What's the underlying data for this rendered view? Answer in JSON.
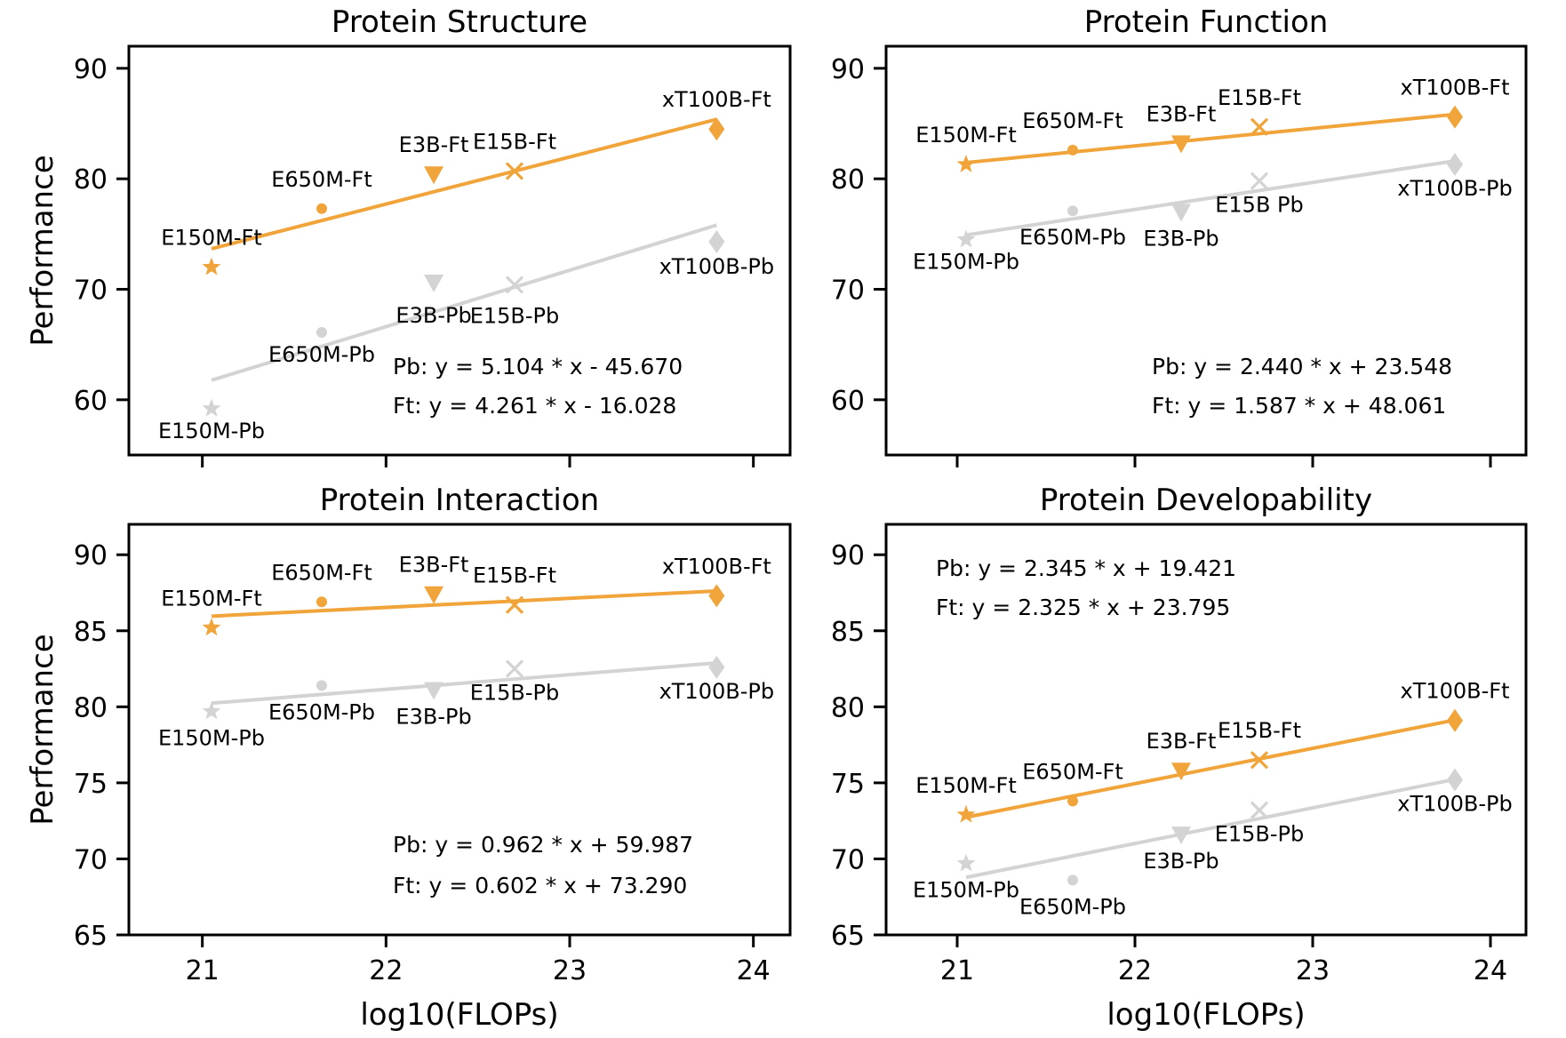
{
  "colors": {
    "ft": "#f0a43a",
    "pb": "#d3d3d3"
  },
  "shared": {
    "xlabel": "log10(FLOPs)",
    "ylabel": "Performance",
    "xticks": [
      21,
      22,
      23,
      24
    ],
    "xlim": [
      20.6,
      24.2
    ]
  },
  "chart_data": [
    {
      "type": "scatter",
      "title": "Protein Structure",
      "ylim": [
        55,
        92
      ],
      "yticks": [
        60,
        70,
        80,
        90
      ],
      "x": [
        21.05,
        21.65,
        22.26,
        22.7,
        23.8
      ],
      "series": [
        {
          "name": "Ft",
          "values": [
            72.0,
            77.3,
            80.4,
            80.7,
            84.5
          ],
          "labels": [
            "E150M-Ft",
            "E650M-Ft",
            "E3B-Ft",
            "E15B-Ft",
            "xT100B-Ft"
          ],
          "fit": {
            "slope": 4.261,
            "intercept": -16.028
          },
          "equation": "Ft: y = 4.261 * x - 16.028"
        },
        {
          "name": "Pb",
          "values": [
            59.2,
            66.1,
            70.6,
            70.4,
            74.3
          ],
          "labels": [
            "E150M-Pb",
            "E650M-Pb",
            "E3B-Pb",
            "E15B-Pb",
            "xT100B-Pb"
          ],
          "fit": {
            "slope": 5.104,
            "intercept": -45.67
          },
          "equation": "Pb: y = 5.104 * x - 45.670"
        }
      ]
    },
    {
      "type": "scatter",
      "title": "Protein Function",
      "ylim": [
        55,
        92
      ],
      "yticks": [
        60,
        70,
        80,
        90
      ],
      "x": [
        21.05,
        21.65,
        22.26,
        22.7,
        23.8
      ],
      "series": [
        {
          "name": "Ft",
          "values": [
            81.3,
            82.6,
            83.2,
            84.7,
            85.6
          ],
          "labels": [
            "E150M-Ft",
            "E650M-Ft",
            "E3B-Ft",
            "E15B-Ft",
            "xT100B-Ft"
          ],
          "fit": {
            "slope": 1.587,
            "intercept": 48.061
          },
          "equation": "Ft: y = 1.587 * x + 48.061"
        },
        {
          "name": "Pb",
          "values": [
            74.5,
            77.1,
            77.0,
            79.8,
            81.3
          ],
          "labels": [
            "E150M-Pb",
            "E650M-Pb",
            "E3B-Pb",
            "E15B Pb",
            "xT100B-Pb"
          ],
          "fit": {
            "slope": 2.44,
            "intercept": 23.548
          },
          "equation": "Pb: y = 2.440 * x + 23.548"
        }
      ]
    },
    {
      "type": "scatter",
      "title": "Protein Interaction",
      "ylim": [
        65,
        92
      ],
      "yticks": [
        65,
        70,
        75,
        80,
        85,
        90
      ],
      "x": [
        21.05,
        21.65,
        22.26,
        22.7,
        23.8
      ],
      "series": [
        {
          "name": "Ft",
          "values": [
            85.2,
            86.9,
            87.4,
            86.7,
            87.3
          ],
          "labels": [
            "E150M-Ft",
            "E650M-Ft",
            "E3B-Ft",
            "E15B-Ft",
            "xT100B-Ft"
          ],
          "fit": {
            "slope": 0.602,
            "intercept": 73.29
          },
          "equation": "Ft: y = 0.602 * x + 73.290"
        },
        {
          "name": "Pb",
          "values": [
            79.7,
            81.4,
            81.1,
            82.5,
            82.6
          ],
          "labels": [
            "E150M-Pb",
            "E650M-Pb",
            "E3B-Pb",
            "E15B-Pb",
            "xT100B-Pb"
          ],
          "fit": {
            "slope": 0.962,
            "intercept": 59.987
          },
          "equation": "Pb: y = 0.962 * x + 59.987"
        }
      ]
    },
    {
      "type": "scatter",
      "title": "Protein Developability",
      "ylim": [
        65,
        92
      ],
      "yticks": [
        65,
        70,
        75,
        80,
        85,
        90
      ],
      "x": [
        21.05,
        21.65,
        22.26,
        22.7,
        23.8
      ],
      "series": [
        {
          "name": "Ft",
          "values": [
            72.9,
            73.8,
            75.8,
            76.5,
            79.1
          ],
          "labels": [
            "E150M-Ft",
            "E650M-Ft",
            "E3B-Ft",
            "E15B-Ft",
            "xT100B-Ft"
          ],
          "fit": {
            "slope": 2.325,
            "intercept": 23.795
          },
          "equation": "Ft: y = 2.325 * x + 23.795"
        },
        {
          "name": "Pb",
          "values": [
            69.7,
            68.6,
            71.6,
            73.2,
            75.2
          ],
          "labels": [
            "E150M-Pb",
            "E650M-Pb",
            "E3B-Pb",
            "E15B-Pb",
            "xT100B-Pb"
          ],
          "fit": {
            "slope": 2.345,
            "intercept": 19.421
          },
          "equation": "Pb: y = 2.345 * x + 19.421"
        }
      ]
    }
  ]
}
